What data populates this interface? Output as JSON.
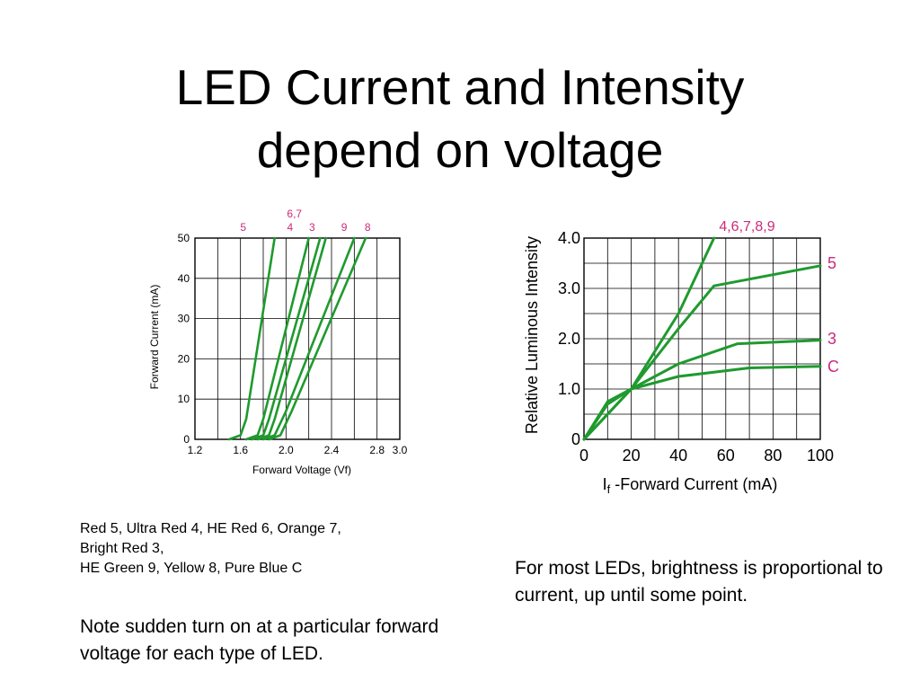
{
  "slide": {
    "title_line1": "LED Current and Intensity",
    "title_line2": "depend on voltage",
    "legend_lines": [
      "Red  5,  Ultra Red 4,  HE Red 6,  Orange 7,",
      "Bright Red 3,",
      "HE Green 9,  Yellow 8, Pure Blue C"
    ],
    "turnon_note": "Note sudden turn on at a particular forward voltage for each type of LED.",
    "brightness_note": "For most LEDs, brightness is proportional to current, up until some point."
  },
  "colors": {
    "curve": "#1f9a2e",
    "label": "#cc2a7a",
    "grid": "#000000"
  },
  "chart_data": [
    {
      "type": "line",
      "title": "",
      "xlabel": "Forward Voltage (Vf)",
      "ylabel": "Forward Current (mA)",
      "xlim": [
        1.2,
        3.0
      ],
      "ylim": [
        0,
        50
      ],
      "x_ticks": [
        "1.2",
        "1.6",
        "2.0",
        "2.4",
        "2.8",
        "3.0"
      ],
      "x_tick_values": [
        1.2,
        1.6,
        2.0,
        2.4,
        2.8,
        3.0
      ],
      "x_grid": [
        1.2,
        1.4,
        1.6,
        1.8,
        2.0,
        2.2,
        2.4,
        2.6,
        2.8,
        3.0
      ],
      "y_ticks": [
        "0",
        "10",
        "20",
        "30",
        "40",
        "50"
      ],
      "y_tick_values": [
        0,
        10,
        20,
        30,
        40,
        50
      ],
      "grid": true,
      "series": [
        {
          "name": "5",
          "x": [
            1.5,
            1.6,
            1.65,
            1.9
          ],
          "y": [
            0,
            1,
            5,
            50
          ]
        },
        {
          "name": "4",
          "x": [
            1.65,
            1.75,
            1.8,
            2.2
          ],
          "y": [
            0,
            1,
            5,
            50
          ]
        },
        {
          "name": "6,7",
          "x": [
            1.7,
            1.8,
            1.85,
            2.3
          ],
          "y": [
            0,
            1,
            5,
            50
          ]
        },
        {
          "name": "3",
          "x": [
            1.75,
            1.85,
            1.9,
            2.35
          ],
          "y": [
            0,
            1,
            5,
            50
          ]
        },
        {
          "name": "9",
          "x": [
            1.8,
            1.9,
            2.0,
            2.6
          ],
          "y": [
            0,
            1,
            7,
            50
          ]
        },
        {
          "name": "8",
          "x": [
            1.85,
            1.95,
            2.05,
            2.7
          ],
          "y": [
            0,
            1,
            7,
            50
          ]
        }
      ],
      "top_labels": [
        {
          "text": "5",
          "x": 1.93,
          "row": 1
        },
        {
          "text": "4",
          "x": 2.25,
          "row": 1
        },
        {
          "text": "6,7",
          "x": 2.28,
          "row": 0
        },
        {
          "text": "3",
          "x": 2.4,
          "row": 1
        },
        {
          "text": "9",
          "x": 2.62,
          "row": 1
        },
        {
          "text": "8",
          "x": 2.78,
          "row": 1
        }
      ]
    },
    {
      "type": "line",
      "title": "",
      "xlabel_prefix": "I",
      "xlabel_sub": "f",
      "xlabel_rest": " -Forward Current (mA)",
      "ylabel": "Relative Luminous Intensity",
      "xlim": [
        0,
        100
      ],
      "ylim": [
        0,
        4.0
      ],
      "x_ticks": [
        "0",
        "20",
        "40",
        "60",
        "80",
        "100"
      ],
      "x_tick_values": [
        0,
        20,
        40,
        60,
        80,
        100
      ],
      "x_grid": [
        0,
        10,
        20,
        30,
        40,
        50,
        60,
        70,
        80,
        90,
        100
      ],
      "y_ticks": [
        "0",
        "1.0",
        "2.0",
        "3.0",
        "4.0"
      ],
      "y_tick_values": [
        0,
        1.0,
        2.0,
        3.0,
        4.0
      ],
      "y_grid": [
        0,
        0.5,
        1.0,
        1.5,
        2.0,
        2.5,
        3.0,
        3.5,
        4.0
      ],
      "grid": true,
      "series": [
        {
          "name": "4,6,7,8,9",
          "x": [
            0,
            10,
            20,
            40,
            55
          ],
          "y": [
            0,
            0.5,
            1.0,
            2.5,
            4.0
          ]
        },
        {
          "name": "5",
          "x": [
            0,
            10,
            20,
            40,
            55,
            100
          ],
          "y": [
            0,
            0.5,
            1.0,
            2.2,
            3.05,
            3.45
          ]
        },
        {
          "name": "3",
          "x": [
            0,
            10,
            20,
            40,
            65,
            100
          ],
          "y": [
            0,
            0.7,
            1.0,
            1.5,
            1.9,
            1.97
          ]
        },
        {
          "name": "C",
          "x": [
            0,
            10,
            20,
            40,
            70,
            100
          ],
          "y": [
            0,
            0.75,
            1.0,
            1.25,
            1.42,
            1.45
          ]
        }
      ],
      "right_labels": [
        {
          "text": "5",
          "y": 3.5
        },
        {
          "text": "3",
          "y": 2.0
        },
        {
          "text": "C",
          "y": 1.45
        }
      ],
      "top_label": {
        "text": "4,6,7,8,9",
        "x": 69
      }
    }
  ]
}
